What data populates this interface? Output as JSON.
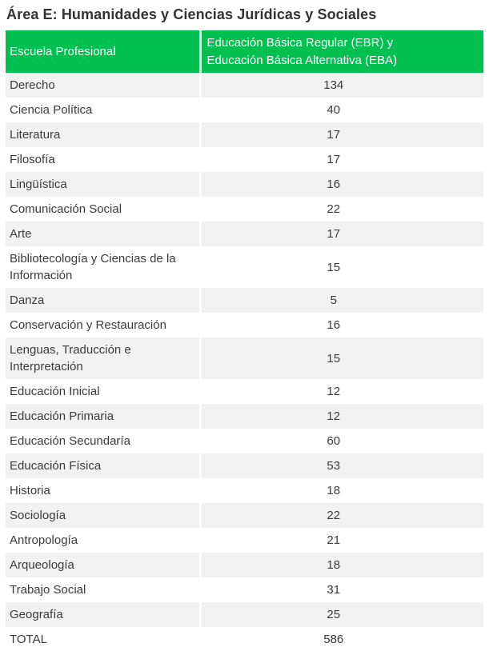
{
  "title": "Área E: Humanidades y Ciencias Jurídicas y Sociales",
  "colors": {
    "header_bg": "#00C14F",
    "header_text": "#FFFFFF",
    "row_bg": "#FFFFFF",
    "row_alt_bg": "#F2F2F2",
    "body_text": "#3B3B3B",
    "title_text": "#333333"
  },
  "table": {
    "header": {
      "col1": "Escuela Profesional",
      "col2_line1": "Educación Básica Regular (EBR) y",
      "col2_line2": "Educación Básica Alternativa (EBA)"
    },
    "rows": [
      {
        "school": "Derecho",
        "value": "134"
      },
      {
        "school": "Ciencia Política",
        "value": "40"
      },
      {
        "school": "Literatura",
        "value": "17"
      },
      {
        "school": "Filosofía",
        "value": "17"
      },
      {
        "school": "Lingüística",
        "value": "16"
      },
      {
        "school": "Comunicación Social",
        "value": "22"
      },
      {
        "school": "Arte",
        "value": "17"
      },
      {
        "school": "Bibliotecología y Ciencias de la Información",
        "value": "15"
      },
      {
        "school": "Danza",
        "value": "5"
      },
      {
        "school": "Conservación y Restauración",
        "value": "16"
      },
      {
        "school": "Lenguas, Traducción e Interpretación",
        "value": "15"
      },
      {
        "school": "Educación Inicial",
        "value": "12"
      },
      {
        "school": "Educación Primaria",
        "value": "12"
      },
      {
        "school": "Educación Secundaría",
        "value": "60"
      },
      {
        "school": "Educación Física",
        "value": "53"
      },
      {
        "school": "Historia",
        "value": "18"
      },
      {
        "school": "Sociología",
        "value": "22"
      },
      {
        "school": "Antropología",
        "value": "21"
      },
      {
        "school": "Arqueología",
        "value": "18"
      },
      {
        "school": "Trabajo Social",
        "value": "31"
      },
      {
        "school": "Geografía",
        "value": "25"
      },
      {
        "school": "TOTAL",
        "value": "586"
      }
    ]
  },
  "chart_data": {
    "type": "table",
    "title": "Área E: Humanidades y Ciencias Jurídicas y Sociales",
    "columns": [
      "Escuela Profesional",
      "Educación Básica Regular (EBR) y Educación Básica Alternativa (EBA)"
    ],
    "categories": [
      "Derecho",
      "Ciencia Política",
      "Literatura",
      "Filosofía",
      "Lingüística",
      "Comunicación Social",
      "Arte",
      "Bibliotecología y Ciencias de la Información",
      "Danza",
      "Conservación y Restauración",
      "Lenguas, Traducción e Interpretación",
      "Educación Inicial",
      "Educación Primaria",
      "Educación Secundaría",
      "Educación Física",
      "Historia",
      "Sociología",
      "Antropología",
      "Arqueología",
      "Trabajo Social",
      "Geografía"
    ],
    "values": [
      134,
      40,
      17,
      17,
      16,
      22,
      17,
      15,
      5,
      16,
      15,
      12,
      12,
      60,
      53,
      18,
      22,
      21,
      18,
      31,
      25
    ],
    "total_label": "TOTAL",
    "total_value": 586
  }
}
